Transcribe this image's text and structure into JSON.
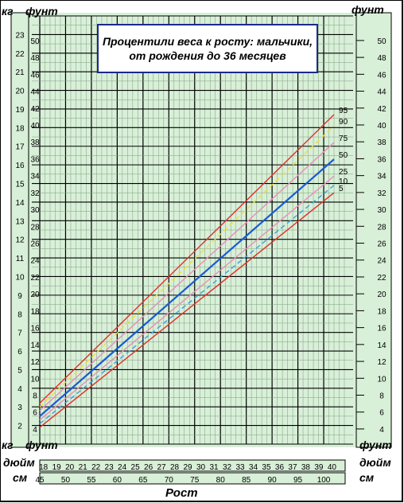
{
  "title_line1": "Процентили веса к росту: мальчики,",
  "title_line2": "от рождения до 36 месяцев",
  "labels": {
    "kg": "кг",
    "lb": "фунт",
    "inch": "дюйм",
    "cm": "см",
    "xlabel": "Рост"
  },
  "colors": {
    "background": "#d8efd8",
    "grid_major": "#000000",
    "grid_minor": "#7f9f7f",
    "p5_95": "#e0302a",
    "p10_90": "#f2dc3c",
    "p25_75": "#e78fb8",
    "p50": "#1a5ad6",
    "p10_25_dash": "#3aa0e0"
  },
  "chart_data": {
    "type": "line",
    "title": "Процентили веса к росту: мальчики, от рождения до 36 месяцев",
    "xlabel": "Рост",
    "x_unit": "cm",
    "xlim": [
      45,
      104
    ],
    "x_ticks_cm": [
      45,
      50,
      55,
      60,
      65,
      70,
      75,
      80,
      85,
      90,
      95,
      100
    ],
    "x_ticks_inch": [
      18,
      19,
      20,
      21,
      22,
      23,
      24,
      25,
      26,
      27,
      28,
      29,
      30,
      31,
      32,
      33,
      34,
      35,
      36,
      37,
      38,
      39,
      40
    ],
    "y_unit_left": "kg",
    "ylim_kg": [
      1,
      24
    ],
    "y_ticks_kg": [
      2,
      3,
      4,
      5,
      6,
      7,
      8,
      9,
      10,
      11,
      12,
      13,
      14,
      15,
      16,
      17,
      18,
      19,
      20,
      21,
      22,
      23
    ],
    "y_ticks_lb": [
      4,
      6,
      8,
      10,
      12,
      14,
      16,
      18,
      20,
      22,
      24,
      26,
      28,
      30,
      32,
      34,
      36,
      38,
      40,
      42,
      44,
      46,
      48,
      50
    ],
    "grid": true,
    "series": [
      {
        "name": "5",
        "color": "#e0302a",
        "dash": false,
        "x": [
          45,
          102
        ],
        "y": [
          1.9,
          14.5
        ]
      },
      {
        "name": "10",
        "color": "#3aa0e0",
        "dash": true,
        "x": [
          45,
          102
        ],
        "y": [
          2.1,
          14.9
        ]
      },
      {
        "name": "25",
        "color": "#e78fb8",
        "dash": false,
        "x": [
          45,
          102
        ],
        "y": [
          2.3,
          15.4
        ]
      },
      {
        "name": "50",
        "color": "#1a5ad6",
        "dash": false,
        "x": [
          45,
          102
        ],
        "y": [
          2.5,
          16.3
        ]
      },
      {
        "name": "75",
        "color": "#e78fb8",
        "dash": false,
        "x": [
          45,
          102
        ],
        "y": [
          2.8,
          17.2
        ]
      },
      {
        "name": "90",
        "color": "#f2dc3c",
        "dash": true,
        "x": [
          45,
          102
        ],
        "y": [
          3.0,
          18.1
        ]
      },
      {
        "name": "95",
        "color": "#e0302a",
        "dash": false,
        "x": [
          45,
          102
        ],
        "y": [
          3.2,
          18.7
        ]
      }
    ]
  }
}
